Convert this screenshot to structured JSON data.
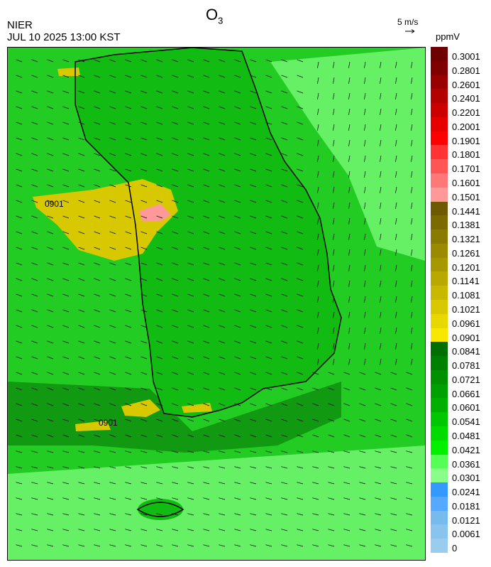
{
  "header": {
    "title_main": "O",
    "title_sub": "3",
    "org": "NIER",
    "datetime": "JUL 10 2025 13:00 KST",
    "vector_ref": "5 m/s",
    "unit": "ppmV"
  },
  "contour_labels": [
    "0901",
    "0901"
  ],
  "legend": {
    "labels": [
      "0.3001",
      "0.2801",
      "0.2601",
      "0.2401",
      "0.2201",
      "0.2001",
      "0.1901",
      "0.1801",
      "0.1701",
      "0.1601",
      "0.1501",
      "0.1441",
      "0.1381",
      "0.1321",
      "0.1261",
      "0.1201",
      "0.1141",
      "0.1081",
      "0.1021",
      "0.0961",
      "0.0901",
      "0.0841",
      "0.0781",
      "0.0721",
      "0.0661",
      "0.0601",
      "0.0541",
      "0.0481",
      "0.0421",
      "0.0361",
      "0.0301",
      "0.0241",
      "0.0181",
      "0.0121",
      "0.0061",
      "0"
    ],
    "colors": [
      "#6e0000",
      "#800000",
      "#990000",
      "#b30000",
      "#cc0000",
      "#e60000",
      "#ff0000",
      "#ff3333",
      "#ff5555",
      "#ff7777",
      "#ff9999",
      "#6e5a00",
      "#7a6a00",
      "#8a7a00",
      "#998a00",
      "#a89800",
      "#b8a800",
      "#c8b800",
      "#d8c800",
      "#e8d800",
      "#f8e800",
      "#006e00",
      "#008000",
      "#009000",
      "#00a000",
      "#00b000",
      "#00c800",
      "#00dc00",
      "#00f000",
      "#55ff55",
      "#88ff88",
      "#3399ff",
      "#55aaff",
      "#77bbee",
      "#88c4ee",
      "#99ccee"
    ]
  },
  "colors": {
    "sea_light": "#66f066",
    "sea_mid": "#22cc22",
    "land": "#11bb11",
    "band_dark": "#119911",
    "plume": "#d8c800",
    "hotspot": "#ff9999",
    "coast": "#000000"
  }
}
